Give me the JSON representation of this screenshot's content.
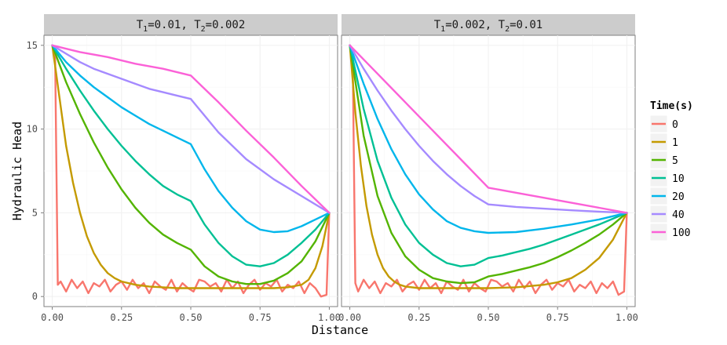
{
  "chart_data": {
    "type": "line",
    "xlabel": "Distance",
    "ylabel": "Hydraulic Head",
    "xlim": [
      -0.03,
      1.03
    ],
    "ylim": [
      -0.6,
      15.6
    ],
    "x_ticks": [
      0,
      0.25,
      0.5,
      0.75,
      1
    ],
    "x_tick_labels": [
      "0.00",
      "0.25",
      "0.50",
      "0.75",
      "1.00"
    ],
    "y_ticks": [
      0,
      5,
      10,
      15
    ],
    "y_tick_labels": [
      "0",
      "5",
      "10",
      "15"
    ],
    "grid": true,
    "legend": {
      "title": "Time(s)",
      "position": "right",
      "entries": [
        "0",
        "1",
        "5",
        "10",
        "20",
        "40",
        "100"
      ]
    },
    "colors": {
      "0": "#F8766D",
      "1": "#C49A00",
      "5": "#53B400",
      "10": "#00C094",
      "20": "#00B6EB",
      "40": "#A58AFF",
      "100": "#FB61D7"
    },
    "panels": [
      {
        "strip": {
          "pre1": "T",
          "sub1": "1",
          "mid": "=0.01, T",
          "sub2": "2",
          "post": "=0.002"
        },
        "series": [
          {
            "name": "0",
            "x": [
              0,
              0.01,
              0.02,
              0.03,
              0.05,
              0.07,
              0.09,
              0.11,
              0.13,
              0.15,
              0.17,
              0.19,
              0.21,
              0.23,
              0.25,
              0.27,
              0.29,
              0.31,
              0.33,
              0.35,
              0.37,
              0.39,
              0.41,
              0.43,
              0.45,
              0.47,
              0.49,
              0.51,
              0.53,
              0.55,
              0.57,
              0.59,
              0.61,
              0.63,
              0.65,
              0.67,
              0.69,
              0.71,
              0.73,
              0.75,
              0.77,
              0.79,
              0.81,
              0.83,
              0.85,
              0.87,
              0.89,
              0.91,
              0.93,
              0.95,
              0.97,
              0.99,
              1.0
            ],
            "y": [
              15,
              14.8,
              0.7,
              0.9,
              0.3,
              1.0,
              0.5,
              0.9,
              0.2,
              0.8,
              0.6,
              1.0,
              0.3,
              0.7,
              0.9,
              0.4,
              1.0,
              0.5,
              0.8,
              0.2,
              0.9,
              0.6,
              0.4,
              1.0,
              0.3,
              0.8,
              0.5,
              0.3,
              1.0,
              0.9,
              0.6,
              0.8,
              0.3,
              1.0,
              0.5,
              0.9,
              0.2,
              0.7,
              1.0,
              0.4,
              0.8,
              0.6,
              1.0,
              0.3,
              0.7,
              0.5,
              0.9,
              0.2,
              0.8,
              0.5,
              0.0,
              0.1,
              5.0
            ]
          },
          {
            "name": "1",
            "x": [
              0,
              0.025,
              0.05,
              0.075,
              0.1,
              0.125,
              0.15,
              0.175,
              0.2,
              0.225,
              0.25,
              0.3,
              0.35,
              0.4,
              0.45,
              0.5,
              0.6,
              0.7,
              0.8,
              0.85,
              0.9,
              0.925,
              0.95,
              0.975,
              1.0
            ],
            "y": [
              15,
              12.0,
              9.0,
              6.8,
              5.0,
              3.6,
              2.6,
              1.9,
              1.4,
              1.1,
              0.9,
              0.7,
              0.6,
              0.55,
              0.5,
              0.5,
              0.5,
              0.5,
              0.5,
              0.55,
              0.7,
              1.0,
              1.7,
              3.0,
              5.0
            ]
          },
          {
            "name": "5",
            "x": [
              0,
              0.05,
              0.1,
              0.15,
              0.2,
              0.25,
              0.3,
              0.35,
              0.4,
              0.45,
              0.5,
              0.55,
              0.6,
              0.65,
              0.7,
              0.75,
              0.8,
              0.85,
              0.9,
              0.95,
              1.0
            ],
            "y": [
              15,
              12.8,
              10.9,
              9.2,
              7.7,
              6.4,
              5.3,
              4.4,
              3.7,
              3.2,
              2.8,
              1.8,
              1.2,
              0.9,
              0.75,
              0.75,
              0.95,
              1.4,
              2.1,
              3.3,
              5.0
            ]
          },
          {
            "name": "10",
            "x": [
              0,
              0.05,
              0.1,
              0.15,
              0.2,
              0.25,
              0.3,
              0.35,
              0.4,
              0.45,
              0.5,
              0.55,
              0.6,
              0.65,
              0.7,
              0.75,
              0.8,
              0.85,
              0.9,
              0.95,
              1.0
            ],
            "y": [
              15,
              13.6,
              12.3,
              11.1,
              10.0,
              9.0,
              8.1,
              7.3,
              6.6,
              6.1,
              5.7,
              4.3,
              3.2,
              2.4,
              1.9,
              1.8,
              2.0,
              2.5,
              3.2,
              4.0,
              5.0
            ]
          },
          {
            "name": "20",
            "x": [
              0,
              0.05,
              0.1,
              0.15,
              0.2,
              0.25,
              0.3,
              0.35,
              0.4,
              0.45,
              0.5,
              0.55,
              0.6,
              0.65,
              0.7,
              0.75,
              0.8,
              0.85,
              0.9,
              0.95,
              1.0
            ],
            "y": [
              15,
              14.0,
              13.2,
              12.5,
              11.9,
              11.3,
              10.8,
              10.3,
              9.9,
              9.5,
              9.1,
              7.6,
              6.3,
              5.3,
              4.5,
              4.0,
              3.85,
              3.9,
              4.2,
              4.6,
              5.0
            ]
          },
          {
            "name": "40",
            "x": [
              0,
              0.05,
              0.1,
              0.15,
              0.2,
              0.25,
              0.3,
              0.35,
              0.4,
              0.45,
              0.5,
              0.6,
              0.7,
              0.8,
              0.9,
              1.0
            ],
            "y": [
              15,
              14.5,
              14.0,
              13.6,
              13.3,
              13.0,
              12.7,
              12.4,
              12.2,
              12.0,
              11.8,
              9.8,
              8.2,
              7.0,
              6.0,
              5.0
            ]
          },
          {
            "name": "100",
            "x": [
              0,
              0.1,
              0.2,
              0.3,
              0.4,
              0.5,
              0.6,
              0.7,
              0.8,
              0.9,
              1.0
            ],
            "y": [
              15,
              14.6,
              14.3,
              13.9,
              13.6,
              13.2,
              11.6,
              9.9,
              8.3,
              6.6,
              5.0
            ]
          }
        ]
      },
      {
        "strip": {
          "pre1": "T",
          "sub1": "1",
          "mid": "=0.002, T",
          "sub2": "2",
          "post": "=0.01"
        },
        "series": [
          {
            "name": "0",
            "x": [
              0,
              0.01,
              0.02,
              0.03,
              0.05,
              0.07,
              0.09,
              0.11,
              0.13,
              0.15,
              0.17,
              0.19,
              0.21,
              0.23,
              0.25,
              0.27,
              0.29,
              0.31,
              0.33,
              0.35,
              0.37,
              0.39,
              0.41,
              0.43,
              0.45,
              0.47,
              0.49,
              0.51,
              0.53,
              0.55,
              0.57,
              0.59,
              0.61,
              0.63,
              0.65,
              0.67,
              0.69,
              0.71,
              0.73,
              0.75,
              0.77,
              0.79,
              0.81,
              0.83,
              0.85,
              0.87,
              0.89,
              0.91,
              0.93,
              0.95,
              0.97,
              0.99,
              1.0
            ],
            "y": [
              15,
              14.8,
              0.8,
              0.3,
              1.0,
              0.5,
              0.9,
              0.2,
              0.8,
              0.6,
              1.0,
              0.3,
              0.7,
              0.9,
              0.4,
              1.0,
              0.5,
              0.8,
              0.2,
              0.9,
              0.6,
              0.4,
              1.0,
              0.3,
              0.8,
              0.5,
              0.3,
              1.0,
              0.9,
              0.6,
              0.8,
              0.3,
              1.0,
              0.5,
              0.9,
              0.2,
              0.7,
              1.0,
              0.4,
              0.8,
              0.6,
              1.0,
              0.3,
              0.7,
              0.5,
              0.9,
              0.2,
              0.8,
              0.5,
              0.9,
              0.1,
              0.3,
              5.0
            ]
          },
          {
            "name": "1",
            "x": [
              0,
              0.02,
              0.04,
              0.06,
              0.08,
              0.1,
              0.12,
              0.14,
              0.16,
              0.18,
              0.2,
              0.25,
              0.3,
              0.35,
              0.4,
              0.5,
              0.6,
              0.7,
              0.75,
              0.8,
              0.85,
              0.9,
              0.95,
              1.0
            ],
            "y": [
              15,
              11.0,
              7.8,
              5.4,
              3.7,
              2.5,
              1.7,
              1.2,
              0.9,
              0.7,
              0.6,
              0.5,
              0.5,
              0.5,
              0.5,
              0.5,
              0.55,
              0.7,
              0.85,
              1.1,
              1.6,
              2.3,
              3.4,
              5.0
            ]
          },
          {
            "name": "5",
            "x": [
              0,
              0.05,
              0.1,
              0.15,
              0.2,
              0.25,
              0.3,
              0.35,
              0.4,
              0.45,
              0.5,
              0.55,
              0.6,
              0.65,
              0.7,
              0.75,
              0.8,
              0.85,
              0.9,
              0.95,
              1.0
            ],
            "y": [
              15,
              9.6,
              6.0,
              3.8,
              2.4,
              1.6,
              1.1,
              0.9,
              0.8,
              0.85,
              1.2,
              1.35,
              1.55,
              1.75,
              2.0,
              2.35,
              2.75,
              3.2,
              3.7,
              4.3,
              5.0
            ]
          },
          {
            "name": "10",
            "x": [
              0,
              0.05,
              0.1,
              0.15,
              0.2,
              0.25,
              0.3,
              0.35,
              0.4,
              0.45,
              0.5,
              0.55,
              0.6,
              0.65,
              0.7,
              0.75,
              0.8,
              0.85,
              0.9,
              0.95,
              1.0
            ],
            "y": [
              15,
              11.2,
              8.1,
              5.9,
              4.3,
              3.2,
              2.5,
              2.0,
              1.8,
              1.9,
              2.3,
              2.45,
              2.65,
              2.85,
              3.1,
              3.4,
              3.7,
              4.0,
              4.3,
              4.65,
              5.0
            ]
          },
          {
            "name": "20",
            "x": [
              0,
              0.05,
              0.1,
              0.15,
              0.2,
              0.25,
              0.3,
              0.35,
              0.4,
              0.45,
              0.5,
              0.6,
              0.7,
              0.8,
              0.9,
              1.0
            ],
            "y": [
              15,
              12.7,
              10.6,
              8.8,
              7.3,
              6.1,
              5.2,
              4.5,
              4.1,
              3.9,
              3.8,
              3.85,
              4.05,
              4.3,
              4.6,
              5.0
            ]
          },
          {
            "name": "40",
            "x": [
              0,
              0.05,
              0.1,
              0.15,
              0.2,
              0.25,
              0.3,
              0.35,
              0.4,
              0.45,
              0.5,
              0.6,
              0.7,
              0.8,
              0.9,
              1.0
            ],
            "y": [
              15,
              13.6,
              12.3,
              11.1,
              10.0,
              9.0,
              8.1,
              7.3,
              6.6,
              6.0,
              5.5,
              5.35,
              5.25,
              5.15,
              5.07,
              5.0
            ]
          },
          {
            "name": "100",
            "x": [
              0,
              0.1,
              0.2,
              0.3,
              0.4,
              0.5,
              0.6,
              0.7,
              0.8,
              0.9,
              1.0
            ],
            "y": [
              15,
              13.3,
              11.6,
              9.9,
              8.2,
              6.5,
              6.2,
              5.9,
              5.6,
              5.3,
              5.0
            ]
          }
        ]
      }
    ]
  }
}
